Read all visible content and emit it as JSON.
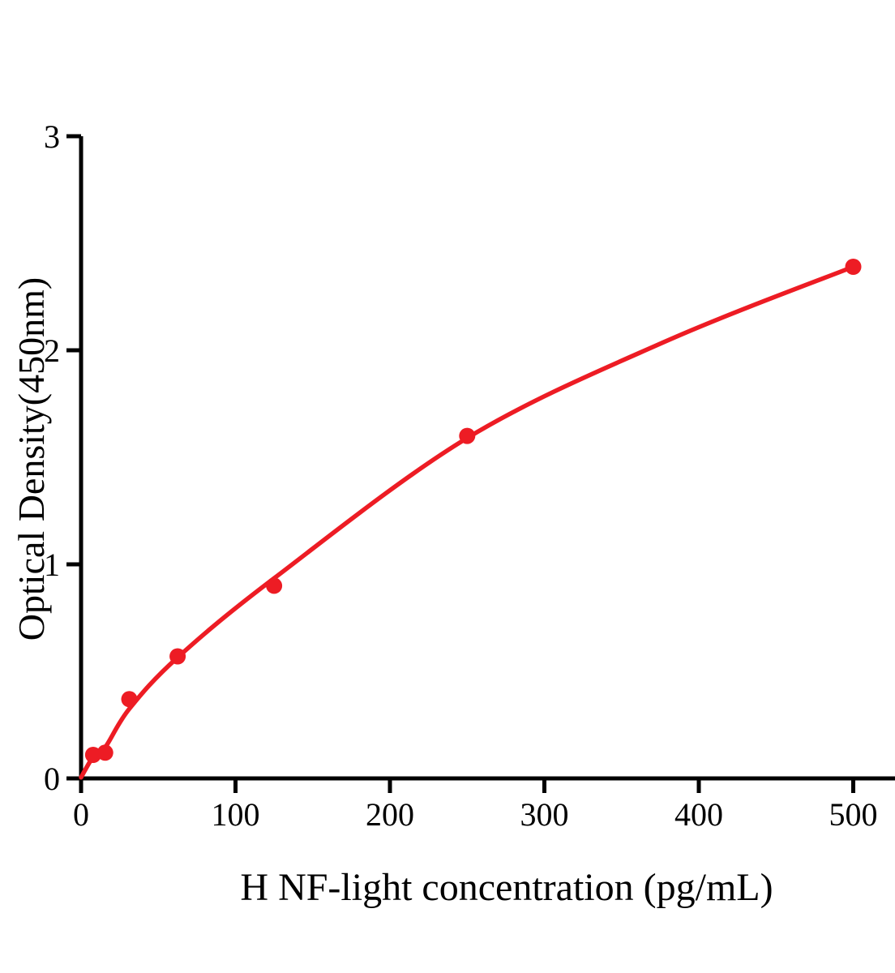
{
  "chart_data": {
    "type": "scatter",
    "title": "",
    "xlabel": "H NF-light concentration (pg/mL)",
    "ylabel": "Optical Density(450nm)",
    "xlim": [
      0,
      527
    ],
    "ylim": [
      0,
      3
    ],
    "x_ticks": [
      0,
      100,
      200,
      300,
      400,
      500
    ],
    "y_ticks": [
      0,
      1,
      2,
      3
    ],
    "grid": false,
    "legend": "none",
    "colors": {
      "series": "#ED1C24",
      "axis": "#000000",
      "background": "#ffffff"
    },
    "series": [
      {
        "name": "standard-points",
        "type": "scatter",
        "color": "#ED1C24",
        "marker": "filled-circle",
        "x": [
          7.8,
          15.6,
          31.25,
          62.5,
          125,
          250,
          500
        ],
        "y": [
          0.11,
          0.12,
          0.37,
          0.57,
          0.9,
          1.6,
          2.39
        ]
      },
      {
        "name": "fit-curve",
        "type": "line",
        "color": "#ED1C24",
        "x": [
          0,
          7.8,
          15.6,
          31.25,
          62.5,
          125,
          250,
          378,
          500
        ],
        "y": [
          0.005,
          0.1,
          0.145,
          0.325,
          0.565,
          0.935,
          1.59,
          2.04,
          2.39
        ]
      }
    ]
  }
}
